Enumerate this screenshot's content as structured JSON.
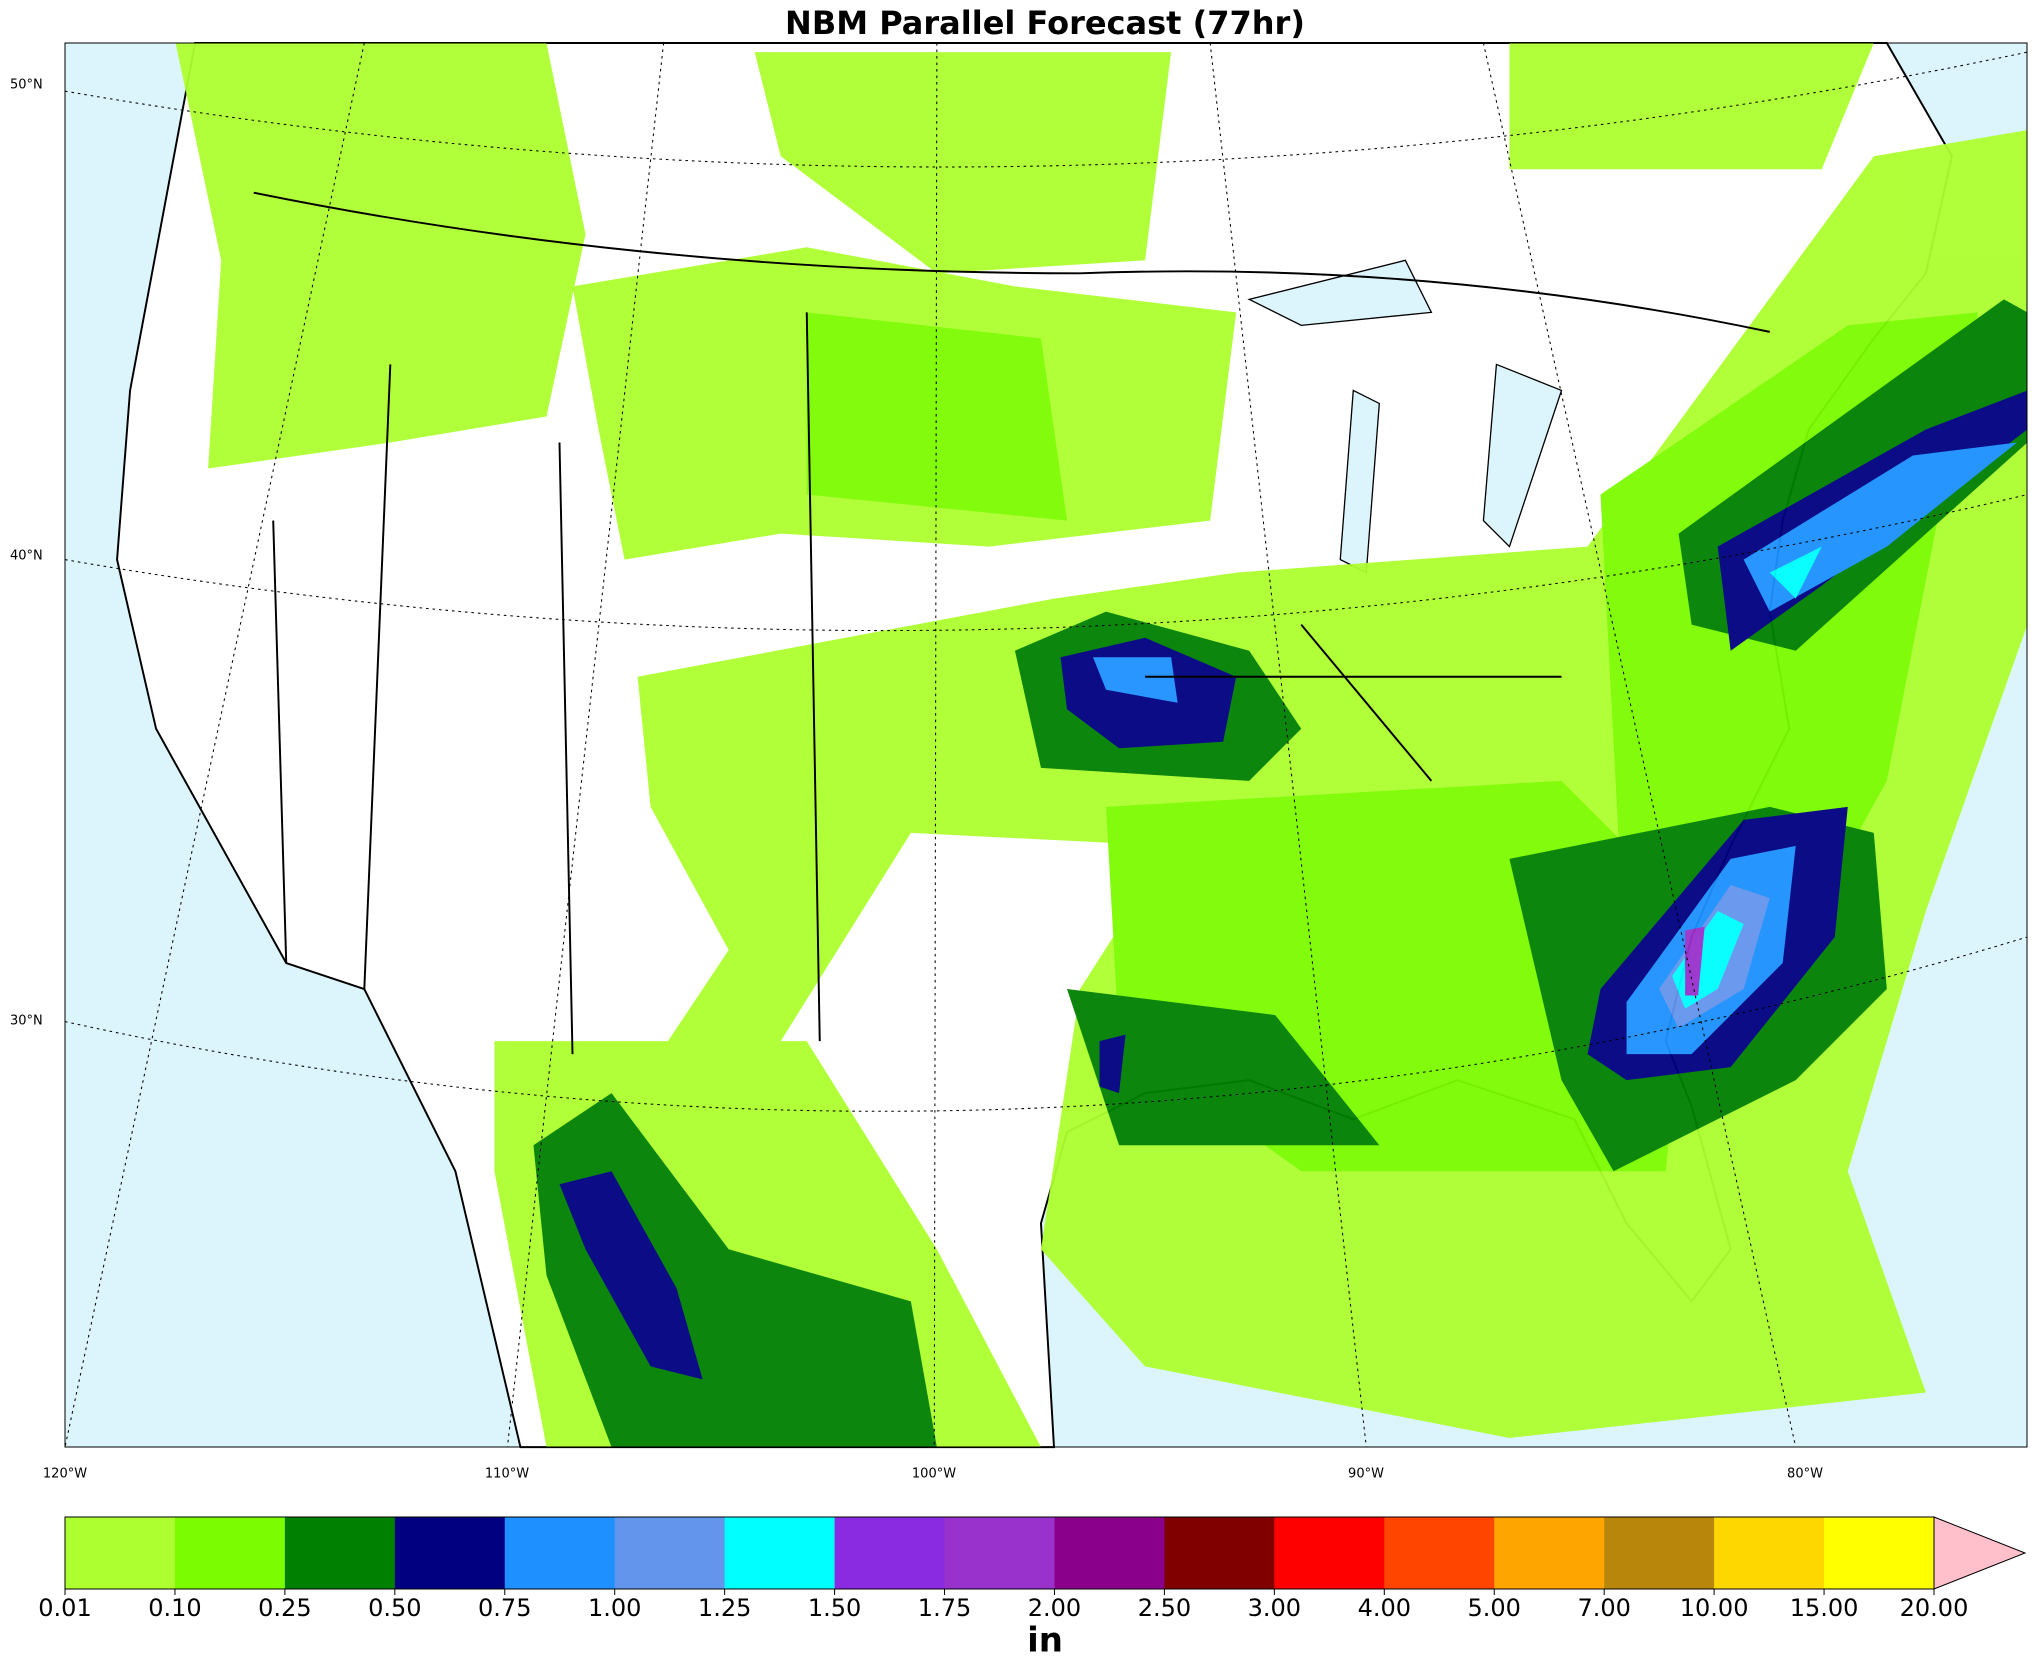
{
  "title": "NBM Parallel Forecast (77hr)",
  "map": {
    "lat_labels": [
      "50°N",
      "40°N",
      "30°N"
    ],
    "lon_labels": [
      "120°W",
      "110°W",
      "100°W",
      "90°W",
      "80°W"
    ]
  },
  "colorbar": {
    "ticks": [
      {
        "value": 0.01,
        "label": "0.01"
      },
      {
        "value": 0.1,
        "label": "0.10"
      },
      {
        "value": 0.25,
        "label": "0.25"
      },
      {
        "value": 0.5,
        "label": "0.50"
      },
      {
        "value": 0.75,
        "label": "0.75"
      },
      {
        "value": 1,
        "label": "1.00"
      },
      {
        "value": 1.25,
        "label": "1.25"
      },
      {
        "value": 1.5,
        "label": "1.50"
      },
      {
        "value": 1.75,
        "label": "1.75"
      },
      {
        "value": 2,
        "label": "2.00"
      },
      {
        "value": 2.5,
        "label": "2.50"
      },
      {
        "value": 3,
        "label": "3.00"
      },
      {
        "value": 4,
        "label": "4.00"
      },
      {
        "value": 5,
        "label": "5.00"
      },
      {
        "value": 7,
        "label": "7.00"
      },
      {
        "value": 10,
        "label": "10.00"
      },
      {
        "value": 15,
        "label": "15.00"
      },
      {
        "value": 20,
        "label": "20.00"
      }
    ],
    "colors": [
      "#adff2f",
      "#7cfc00",
      "#008000",
      "#000080",
      "#1e90ff",
      "#6495ed",
      "#00ffff",
      "#8a2be2",
      "#9932cc",
      "#8b008b",
      "#800000",
      "#ff0000",
      "#ff4500",
      "#ffa500",
      "#b8860b",
      "#ffd700",
      "#ffff00"
    ],
    "extend_color": "#ffc0cb",
    "unit": "in"
  }
}
